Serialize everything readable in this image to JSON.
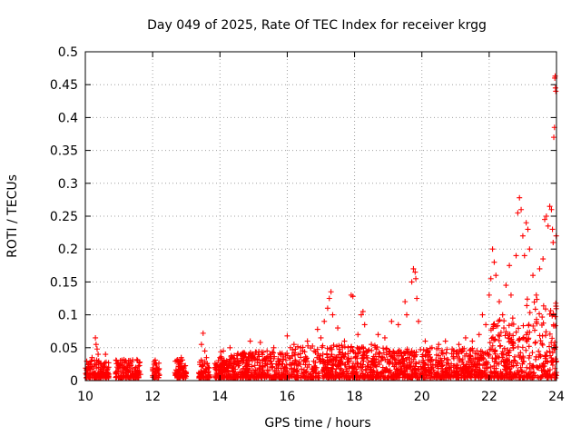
{
  "chart_data": {
    "type": "scatter",
    "title": "Day 049 of 2025, Rate Of TEC Index for receiver krgg",
    "xlabel": "GPS time / hours",
    "ylabel": "ROTI / TECUs",
    "xlim": [
      10,
      24
    ],
    "ylim": [
      0,
      0.5
    ],
    "xticks": [
      "10",
      "12",
      "14",
      "16",
      "18",
      "20",
      "22",
      "24"
    ],
    "yticks": [
      "0",
      "0.05",
      "0.1",
      "0.15",
      "0.2",
      "0.25",
      "0.3",
      "0.35",
      "0.4",
      "0.45",
      "0.5"
    ],
    "grid": true,
    "marker": "plus",
    "color": "#ff0000",
    "series": [
      {
        "points": [
          [
            10.05,
            0.012
          ],
          [
            10.1,
            0.025
          ],
          [
            10.15,
            0.018
          ],
          [
            10.2,
            0.035
          ],
          [
            10.25,
            0.022
          ],
          [
            10.3,
            0.065
          ],
          [
            10.32,
            0.055
          ],
          [
            10.35,
            0.048
          ],
          [
            10.38,
            0.04
          ],
          [
            10.4,
            0.03
          ],
          [
            10.45,
            0.015
          ],
          [
            10.55,
            0.02
          ],
          [
            10.6,
            0.04
          ],
          [
            10.65,
            0.012
          ],
          [
            10.9,
            0.01
          ],
          [
            11.0,
            0.018
          ],
          [
            11.2,
            0.03
          ],
          [
            11.25,
            0.022
          ],
          [
            11.3,
            0.015
          ],
          [
            11.35,
            0.025
          ],
          [
            11.4,
            0.018
          ],
          [
            11.5,
            0.02
          ],
          [
            11.55,
            0.012
          ],
          [
            12.05,
            0.012
          ],
          [
            12.1,
            0.018
          ],
          [
            12.7,
            0.01
          ],
          [
            12.8,
            0.025
          ],
          [
            12.85,
            0.035
          ],
          [
            12.9,
            0.015
          ],
          [
            13.4,
            0.028
          ],
          [
            13.45,
            0.055
          ],
          [
            13.5,
            0.072
          ],
          [
            13.55,
            0.045
          ],
          [
            13.6,
            0.035
          ],
          [
            13.65,
            0.02
          ],
          [
            13.9,
            0.015
          ],
          [
            14.0,
            0.035
          ],
          [
            14.1,
            0.045
          ],
          [
            14.2,
            0.03
          ],
          [
            14.3,
            0.05
          ],
          [
            14.5,
            0.038
          ],
          [
            14.7,
            0.04
          ],
          [
            14.9,
            0.06
          ],
          [
            15.0,
            0.035
          ],
          [
            15.2,
            0.058
          ],
          [
            15.4,
            0.045
          ],
          [
            15.6,
            0.05
          ],
          [
            15.8,
            0.04
          ],
          [
            16.0,
            0.068
          ],
          [
            16.2,
            0.055
          ],
          [
            16.4,
            0.05
          ],
          [
            16.6,
            0.06
          ],
          [
            16.8,
            0.045
          ],
          [
            16.9,
            0.078
          ],
          [
            17.0,
            0.065
          ],
          [
            17.1,
            0.09
          ],
          [
            17.2,
            0.11
          ],
          [
            17.25,
            0.125
          ],
          [
            17.3,
            0.135
          ],
          [
            17.35,
            0.1
          ],
          [
            17.5,
            0.08
          ],
          [
            17.7,
            0.06
          ],
          [
            17.9,
            0.13
          ],
          [
            17.95,
            0.128
          ],
          [
            18.1,
            0.07
          ],
          [
            18.2,
            0.1
          ],
          [
            18.25,
            0.105
          ],
          [
            18.3,
            0.085
          ],
          [
            18.5,
            0.055
          ],
          [
            18.7,
            0.07
          ],
          [
            18.9,
            0.065
          ],
          [
            19.1,
            0.09
          ],
          [
            19.3,
            0.085
          ],
          [
            19.5,
            0.12
          ],
          [
            19.55,
            0.1
          ],
          [
            19.7,
            0.15
          ],
          [
            19.75,
            0.17
          ],
          [
            19.8,
            0.165
          ],
          [
            19.82,
            0.155
          ],
          [
            19.85,
            0.125
          ],
          [
            19.9,
            0.09
          ],
          [
            20.1,
            0.06
          ],
          [
            20.3,
            0.05
          ],
          [
            20.5,
            0.055
          ],
          [
            20.7,
            0.06
          ],
          [
            20.9,
            0.048
          ],
          [
            21.1,
            0.055
          ],
          [
            21.3,
            0.065
          ],
          [
            21.5,
            0.06
          ],
          [
            21.7,
            0.07
          ],
          [
            21.8,
            0.1
          ],
          [
            21.9,
            0.085
          ],
          [
            22.0,
            0.13
          ],
          [
            22.05,
            0.155
          ],
          [
            22.1,
            0.2
          ],
          [
            22.15,
            0.18
          ],
          [
            22.2,
            0.16
          ],
          [
            22.3,
            0.12
          ],
          [
            22.4,
            0.1
          ],
          [
            22.5,
            0.145
          ],
          [
            22.6,
            0.175
          ],
          [
            22.65,
            0.13
          ],
          [
            22.7,
            0.095
          ],
          [
            22.8,
            0.19
          ],
          [
            22.85,
            0.255
          ],
          [
            22.9,
            0.278
          ],
          [
            22.95,
            0.26
          ],
          [
            23.0,
            0.22
          ],
          [
            23.05,
            0.19
          ],
          [
            23.1,
            0.24
          ],
          [
            23.15,
            0.23
          ],
          [
            23.2,
            0.2
          ],
          [
            23.3,
            0.16
          ],
          [
            23.4,
            0.13
          ],
          [
            23.5,
            0.17
          ],
          [
            23.6,
            0.185
          ],
          [
            23.65,
            0.245
          ],
          [
            23.7,
            0.25
          ],
          [
            23.75,
            0.235
          ],
          [
            23.8,
            0.265
          ],
          [
            23.85,
            0.26
          ],
          [
            23.88,
            0.23
          ],
          [
            23.9,
            0.21
          ],
          [
            23.92,
            0.37
          ],
          [
            23.94,
            0.385
          ],
          [
            23.95,
            0.46
          ],
          [
            23.96,
            0.463
          ],
          [
            23.97,
            0.445
          ],
          [
            23.98,
            0.44
          ],
          [
            23.99,
            0.22
          ]
        ]
      }
    ]
  }
}
